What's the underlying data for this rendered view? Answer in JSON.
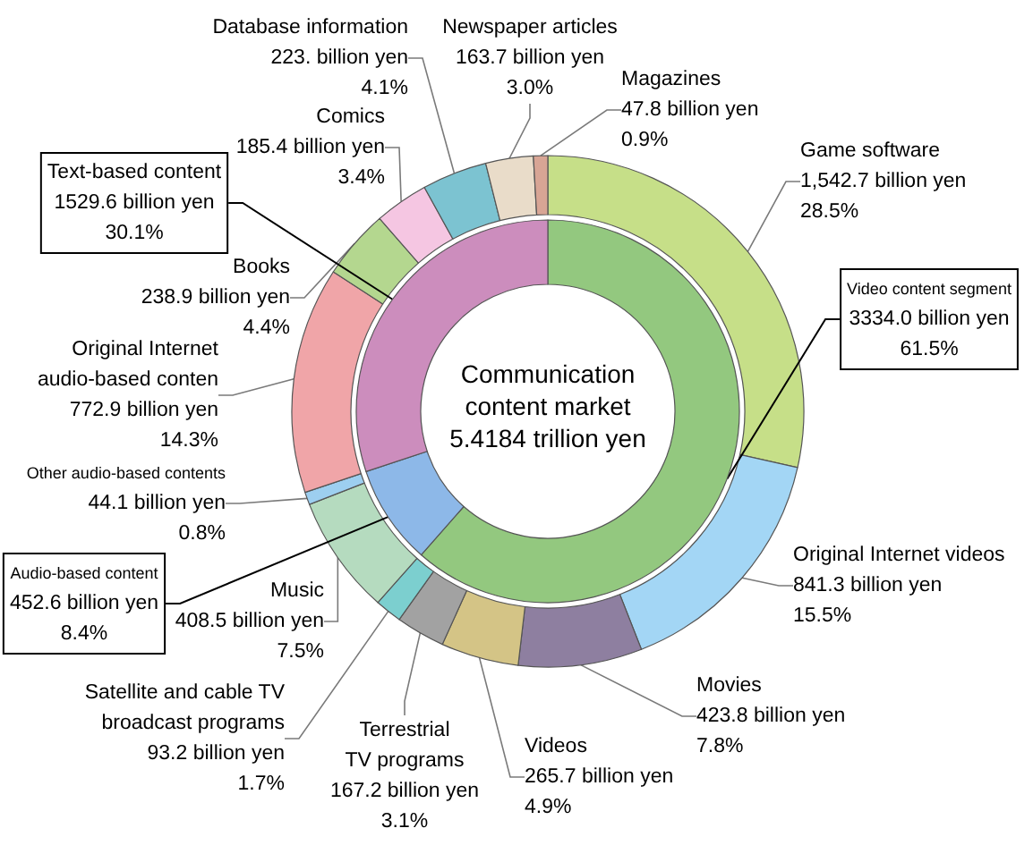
{
  "chart_data": [
    {
      "type": "donut",
      "annotations": [
        "Communication\ncontent market\n5.4184 trillion yen"
      ],
      "categories": [
        "Video content segment",
        "Audio-based content",
        "Text-based content"
      ],
      "values": [
        61.5,
        8.4,
        30.1
      ],
      "colors": [
        "#93c87f",
        "#8db8e8",
        "#cc8dbd"
      ],
      "value_labels": [
        "3334.0 billion yen\n61.5%",
        "452.6 billion yen\n8.4%",
        "1529.6 billion yen\n30.1%"
      ]
    },
    {
      "type": "donut",
      "categories": [
        "Game software",
        "Original Internet videos",
        "Movies",
        "Videos",
        "Terrestrial\nTV programs",
        "Satellite and cable TV\nbroadcast programs",
        "Music",
        "Other audio-based contents",
        "Original Internet\naudio-based conten",
        "Books",
        "Comics",
        "Database information",
        "Newspaper articles",
        "Magazines"
      ],
      "values": [
        28.5,
        15.5,
        7.8,
        4.9,
        3.1,
        1.7,
        7.5,
        0.8,
        14.3,
        4.4,
        3.4,
        4.1,
        3.0,
        0.9
      ],
      "colors": [
        "#c6df88",
        "#a3d6f5",
        "#8e7fa0",
        "#d4c486",
        "#a2a2a2",
        "#7ccfcf",
        "#b5dbbf",
        "#9dcff0",
        "#f0a5a8",
        "#b4d78f",
        "#f5c6e2",
        "#7cc3d1",
        "#e9dcc9",
        "#d8a595"
      ],
      "value_labels": [
        "1,542.7 billion yen\n28.5%",
        "841.3 billion yen\n15.5%",
        "423.8 billion yen\n7.8%",
        "265.7 billion yen\n4.9%",
        "167.2 billion yen\n3.1%",
        "93.2 billion yen\n1.7%",
        "408.5 billion yen\n7.5%",
        "44.1 billion yen\n0.8%",
        "772.9 billion yen\n14.3%",
        "238.9 billion yen\n4.4%",
        "185.4 billion yen\n3.4%",
        "223. billion yen\n4.1%",
        "163.7 billion yen\n3.0%",
        "47.8 billion yen\n0.9%"
      ]
    }
  ]
}
